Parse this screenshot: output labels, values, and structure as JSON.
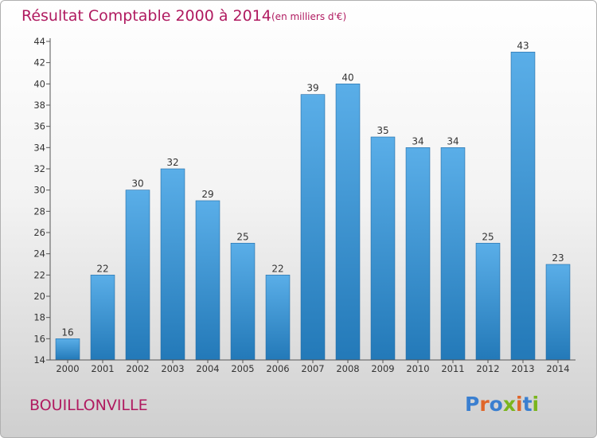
{
  "chart_data": {
    "type": "bar",
    "title": "Résultat Comptable 2000 à 2014",
    "subtitle": "(en milliers d'€)",
    "categories": [
      "2000",
      "2001",
      "2002",
      "2003",
      "2004",
      "2005",
      "2006",
      "2007",
      "2008",
      "2009",
      "2010",
      "2011",
      "2012",
      "2013",
      "2014"
    ],
    "values": [
      16,
      22,
      30,
      32,
      29,
      25,
      22,
      39,
      40,
      35,
      34,
      34,
      25,
      43,
      23
    ],
    "xlabel": "",
    "ylabel": "",
    "ylim": [
      14,
      44
    ],
    "yticks": [
      14,
      16,
      18,
      20,
      22,
      24,
      26,
      28,
      30,
      32,
      34,
      36,
      38,
      40,
      42,
      44
    ],
    "grid": false,
    "bar_color_top": "#5aaee8",
    "bar_color_bottom": "#2379b8",
    "data_labels": true
  },
  "commune": "BOUILLONVILLE",
  "logo": {
    "text": "Proxiti",
    "letter_colors": [
      "#3a7fd0",
      "#e0662a",
      "#3a7fd0",
      "#7ab51d",
      "#e0662a",
      "#3a7fd0",
      "#7ab51d"
    ]
  },
  "colors": {
    "title": "#b01a60",
    "axis": "#555555"
  }
}
